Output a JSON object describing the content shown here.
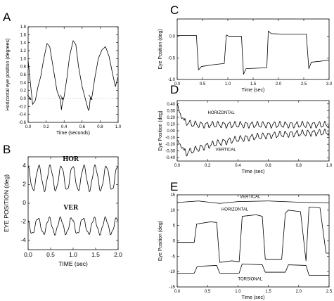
{
  "chart_data": [
    {
      "id": "A",
      "type": "line",
      "panel_label": "A",
      "xlabel": "Time (seconds)",
      "ylabel": "Horizontal eye position (degrees)",
      "xlim": [
        0,
        1.0
      ],
      "ylim": [
        -0.6,
        1.8
      ],
      "xticks": [
        "0.0",
        "0.2",
        "0.4",
        "0.6",
        "0.8",
        "1.0"
      ],
      "yticks": [
        "-0.6",
        "-0.4",
        "-0.2",
        "0.0",
        "0.2",
        "0.4",
        "0.6",
        "0.8",
        "1.0",
        "1.2",
        "1.4",
        "1.6",
        "1.8"
      ],
      "grid": false,
      "reference_line": {
        "y": 0,
        "style": "dotted"
      },
      "arrows_at_x": [
        0.04,
        0.4,
        0.72
      ],
      "series": [
        {
          "x": [
            0,
            0.02,
            0.05,
            0.08,
            0.11,
            0.14,
            0.17,
            0.21,
            0.24,
            0.28,
            0.32,
            0.36,
            0.37,
            0.38,
            0.4,
            0.43,
            0.46,
            0.5,
            0.53,
            0.56,
            0.6,
            0.64,
            0.67,
            0.68,
            0.69,
            0.71,
            0.74,
            0.78,
            0.82,
            0.86,
            0.9,
            0.94,
            0.97,
            1.0
          ],
          "y": [
            0.95,
            0.5,
            -0.15,
            -0.05,
            0.3,
            0.55,
            0.95,
            1.38,
            1.3,
            0.75,
            0.2,
            -0.05,
            -0.28,
            -0.12,
            0.05,
            0.5,
            1.05,
            1.45,
            1.35,
            0.8,
            0.3,
            -0.05,
            -0.3,
            -0.25,
            0.0,
            0.05,
            0.5,
            1.0,
            1.22,
            1.3,
            1.05,
            0.6,
            0.3,
            0.55
          ]
        }
      ]
    },
    {
      "id": "B",
      "type": "line",
      "panel_label": "B",
      "xlabel": "TIME (sec)",
      "ylabel": "EYE POSITION (deg)",
      "xlim": [
        0,
        2.0
      ],
      "ylim": [
        -5,
        5
      ],
      "xticks": [
        "0.0",
        "0.5",
        "1.0",
        "1.5",
        "2.0"
      ],
      "yticks": [
        "-4",
        "-2",
        "0",
        "2",
        "4"
      ],
      "grid": false,
      "series": [
        {
          "name": "HOR",
          "oscillation": {
            "offset": 2.7,
            "amplitude": 1.3,
            "frequency_hz": 4.0,
            "phase": 0.3
          }
        },
        {
          "name": "VER",
          "oscillation": {
            "offset": -2.45,
            "amplitude": 0.85,
            "frequency_hz": 4.0,
            "phase": 0.8
          }
        }
      ]
    },
    {
      "id": "C",
      "type": "line",
      "panel_label": "C",
      "xlabel": "Time (sec)",
      "ylabel": "Eye Position (deg)",
      "xlim": [
        0,
        3.0
      ],
      "ylim": [
        -1.0,
        0.4
      ],
      "xticks": [
        "0.0",
        "0.5",
        "1.0",
        "1.5",
        "2.0",
        "2.5",
        "3.0"
      ],
      "yticks": [
        "-1.0",
        "-0.5",
        "0.0"
      ],
      "grid": false,
      "series": [
        {
          "x": [
            0,
            0.38,
            0.42,
            0.48,
            0.7,
            0.93,
            0.97,
            1.02,
            1.27,
            1.31,
            1.36,
            1.55,
            1.77,
            1.8,
            1.86,
            2.1,
            2.55,
            2.6,
            2.65,
            2.82,
            3.0
          ],
          "y": [
            0.02,
            0.02,
            -0.78,
            -0.7,
            -0.66,
            -0.63,
            0.03,
            0.0,
            0.0,
            -0.88,
            -0.75,
            -0.74,
            -0.73,
            0.12,
            0.06,
            0.05,
            0.05,
            -0.75,
            -0.6,
            -0.58,
            -0.55
          ]
        }
      ]
    },
    {
      "id": "D",
      "type": "line",
      "panel_label": "D",
      "xlabel": "Time (sec)",
      "ylabel": "Eye Position (deg)",
      "xlim": [
        0,
        1.0
      ],
      "ylim": [
        -0.45,
        0.45
      ],
      "xticks": [
        "0.0",
        "0.2",
        "0.4",
        "0.6",
        "0.8",
        "1.0"
      ],
      "yticks": [
        "-0.40",
        "-0.30",
        "-0.20",
        "-0.10",
        "0.00",
        "0.10",
        "0.20",
        "0.30",
        "0.40"
      ],
      "grid": false,
      "series": [
        {
          "name": "HORIZONTAL",
          "oscillation": {
            "start_value": 0.4,
            "end_offset": 0.09,
            "amplitude": 0.04,
            "frequency_hz": 27
          }
        },
        {
          "name": "VERTICAL",
          "oscillation": {
            "start_value": -0.15,
            "min_value": -0.33,
            "end_offset": 0.0,
            "amplitude": 0.04,
            "frequency_hz": 27
          }
        }
      ]
    },
    {
      "id": "E",
      "type": "line",
      "panel_label": "E",
      "xlabel": "Time (sec)",
      "ylabel": "Eye Position (deg)",
      "xlim": [
        0,
        2.5
      ],
      "ylim": [
        -15,
        15
      ],
      "xticks": [
        "0.0",
        "0.5",
        "1.0",
        "1.5",
        "2.0",
        "2.5"
      ],
      "yticks": [
        "-15",
        "-10",
        "-5",
        "0",
        "5",
        "10",
        "15"
      ],
      "grid": false,
      "series": [
        {
          "name": "VERTICAL",
          "x": [
            0,
            0.35,
            0.7,
            1.0,
            1.5,
            2.0,
            2.5
          ],
          "y": [
            12.5,
            13.0,
            12.2,
            12.8,
            13.0,
            12.6,
            12.4
          ]
        },
        {
          "name": "HORIZONTAL",
          "x": [
            0,
            0.28,
            0.32,
            0.55,
            0.65,
            0.7,
            0.9,
            1.02,
            1.07,
            1.3,
            1.4,
            1.45,
            1.72,
            1.78,
            1.83,
            2.03,
            2.12,
            2.17,
            2.35,
            2.45,
            2.5
          ],
          "y": [
            -0.5,
            -0.5,
            5.5,
            6.2,
            6.0,
            -7.0,
            -6.5,
            -6.8,
            8.0,
            8.5,
            8.0,
            -6.0,
            -6.0,
            9.0,
            10.0,
            9.5,
            -6.5,
            11.0,
            10.8,
            -4.0,
            -4.0
          ]
        },
        {
          "name": "TORSIONAL",
          "x": [
            0,
            0.28,
            0.33,
            0.65,
            0.7,
            1.02,
            1.07,
            1.4,
            1.45,
            1.78,
            1.83,
            2.12,
            2.17,
            2.5
          ],
          "y": [
            -10.5,
            -10.5,
            -8.3,
            -8.0,
            -10.5,
            -10.5,
            -7.5,
            -7.8,
            -10.2,
            -10.2,
            -7.8,
            -8.0,
            -11.2,
            -11.2
          ]
        }
      ]
    }
  ]
}
